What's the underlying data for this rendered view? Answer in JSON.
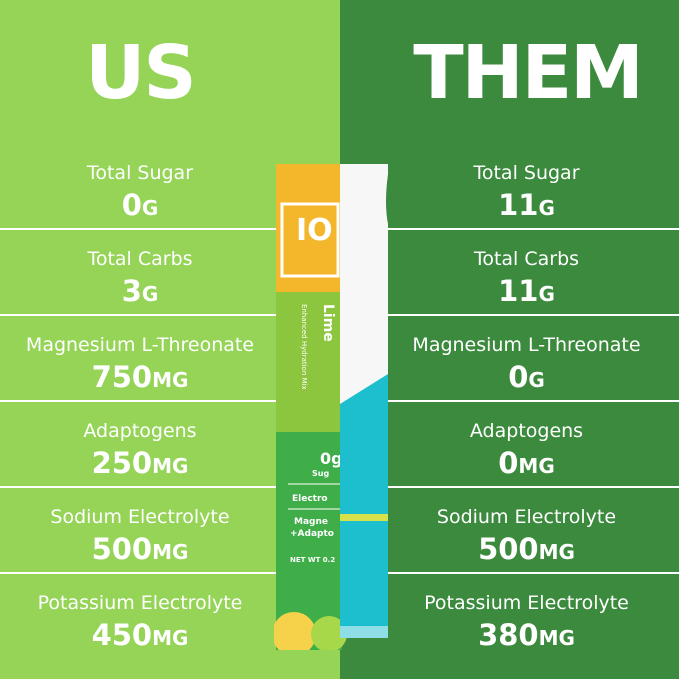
{
  "us": {
    "title": "US",
    "rows": [
      {
        "label": "Total Sugar",
        "value": "0",
        "unit": "G"
      },
      {
        "label": "Total Carbs",
        "value": "3",
        "unit": "G"
      },
      {
        "label": "Magnesium L-Threonate",
        "value": "750",
        "unit": "MG"
      },
      {
        "label": "Adaptogens",
        "value": "250",
        "unit": "MG"
      },
      {
        "label": "Sodium Electrolyte",
        "value": "500",
        "unit": "MG"
      },
      {
        "label": "Potassium Electrolyte",
        "value": "450",
        "unit": "MG"
      }
    ]
  },
  "them": {
    "title": "THEM",
    "rows": [
      {
        "label": "Total Sugar",
        "value": "11",
        "unit": "G"
      },
      {
        "label": "Total Carbs",
        "value": "11",
        "unit": "G"
      },
      {
        "label": "Magnesium L-Threonate",
        "value": "0",
        "unit": "G"
      },
      {
        "label": "Adaptogens",
        "value": "0",
        "unit": "MG"
      },
      {
        "label": "Sodium Electrolyte",
        "value": "500",
        "unit": "MG"
      },
      {
        "label": "Potassium Electrolyte",
        "value": "380",
        "unit": "MG"
      }
    ]
  },
  "packet": {
    "brand": "IO MI",
    "flavor": "Lime",
    "subtitle": "Enhanced Hydration Mix",
    "sugar": "0g",
    "sugar_label": "Sug",
    "line1": "Electro",
    "line2": "Magne",
    "line3": "+Adapto",
    "netwt": "NET WT 0.2"
  },
  "colors": {
    "us_bg": "#95d457",
    "them_bg": "#3b8a3d",
    "packet_teal": "#1dbfcf",
    "packet_orange": "#f4b62a"
  }
}
